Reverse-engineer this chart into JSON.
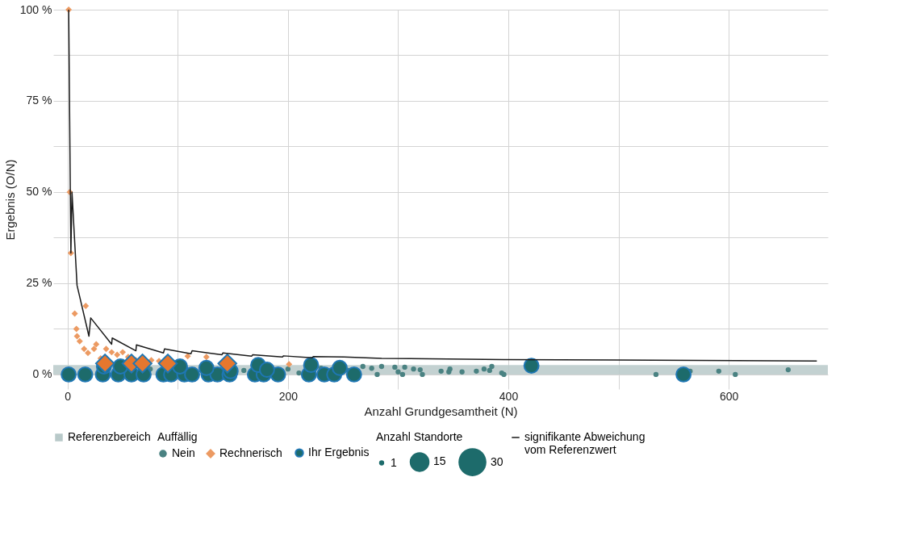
{
  "chart_data": {
    "type": "bubble",
    "xlabel": "Anzahl Grundgesamtheit (N)",
    "ylabel": "Ergebnis (O/N)",
    "legend_title": "Auffällig",
    "legend": "bottom",
    "grid": true,
    "xlim": [
      -13,
      690
    ],
    "ylim": [
      -4,
      100
    ],
    "xticks": [
      0,
      {
        "value": 100,
        "label": null
      },
      200,
      {
        "value": 300,
        "label": null
      },
      400,
      {
        "value": 500,
        "label": null
      },
      600
    ],
    "yticks": [
      {
        "value": 0,
        "label": "0 %"
      },
      {
        "value": 12.5,
        "label": null
      },
      {
        "value": 25,
        "label": "25 %"
      },
      {
        "value": 37.5,
        "label": null
      },
      {
        "value": 50,
        "label": "50 %"
      },
      {
        "value": 62.5,
        "label": null
      },
      {
        "value": 75,
        "label": "75 %"
      },
      {
        "value": 87.5,
        "label": null
      },
      {
        "value": 100,
        "label": "100 %"
      }
    ],
    "size_legend": [
      1,
      15,
      30
    ],
    "annotations": [
      "Anzahl Standorte"
    ],
    "bands": [
      {
        "axis": "y",
        "from": 0,
        "to": 2.6,
        "label": "Referenzbereich",
        "color": "#b8c9c9"
      }
    ],
    "series": [
      {
        "type": "line",
        "name": "signifikante Abweichung\nvom Referenzwert",
        "color": "#1a1a1a",
        "x": [
          1,
          3,
          4,
          8.6,
          19.4,
          21,
          40,
          40.5,
          62,
          62.5,
          87,
          88,
          112,
          113,
          140,
          141,
          167,
          168,
          195,
          196,
          222,
          223,
          251,
          285,
          395,
          680
        ],
        "values": [
          100,
          33.3,
          50,
          24.4,
          10.5,
          15.5,
          8.3,
          10,
          6.5,
          8.1,
          5.9,
          7,
          5.7,
          6.5,
          5.4,
          5.9,
          5,
          5.4,
          4.8,
          5.1,
          4.6,
          4.9,
          4.8,
          4.4,
          4.1,
          3.7
        ]
      },
      {
        "name": "Nein",
        "color": "#4a8282",
        "marker": "circle",
        "x": [
          75,
          160,
          200,
          210,
          230,
          255,
          268,
          276,
          285,
          281,
          297,
          306,
          300,
          304,
          314,
          320,
          322,
          339,
          347,
          346,
          358,
          371,
          378,
          385,
          383,
          394,
          396,
          534,
          565,
          591,
          606,
          654
        ],
        "values": [
          1.5,
          1.1,
          1.5,
          0.4,
          1.7,
          1.1,
          2.2,
          1.7,
          2.2,
          0,
          2,
          2,
          0.7,
          0,
          1.5,
          1.3,
          0,
          0.9,
          1.5,
          0.7,
          0.7,
          0.9,
          1.5,
          2.2,
          1.1,
          0.4,
          0,
          0,
          0.9,
          0.9,
          0,
          1.3
        ],
        "sizes": [
          1,
          1,
          1,
          1,
          1,
          1,
          1,
          1,
          1,
          1,
          1,
          1,
          1,
          1,
          1,
          1,
          1,
          1,
          1,
          1,
          1,
          1,
          1,
          1,
          1,
          1,
          1,
          1,
          1,
          1,
          1,
          1
        ]
      },
      {
        "name": "Rechnerisch",
        "color": "#ec9a62",
        "marker": "diamond",
        "x": [
          1,
          2,
          3,
          6.5,
          16.5,
          8,
          8.6,
          11,
          15,
          18.5,
          26,
          24,
          30,
          35,
          40,
          45,
          50,
          55,
          62,
          76,
          83,
          109,
          126,
          201
        ],
        "values": [
          100,
          50,
          33.3,
          16.7,
          18.8,
          12.5,
          10.5,
          9.1,
          7,
          5.9,
          8.3,
          7,
          4.4,
          7,
          6.1,
          5.4,
          6.1,
          4.8,
          3.9,
          3.9,
          3.7,
          5,
          4.8,
          2.8
        ],
        "sizes": [
          1,
          1,
          1,
          1,
          1,
          1,
          1,
          1,
          1,
          1,
          1,
          1,
          1,
          1,
          1,
          1,
          1,
          1,
          1,
          1,
          1,
          1,
          1,
          1
        ]
      },
      {
        "name": "Ihr Ergebnis",
        "color": "#1d6b6b",
        "marker": "circle",
        "x": [
          1,
          16,
          32,
          46,
          58,
          69,
          87,
          94,
          106,
          113,
          128,
          136,
          147,
          170,
          178,
          191,
          219,
          233,
          242,
          260,
          33,
          48,
          102,
          126,
          148,
          173,
          181,
          221,
          247,
          421,
          559
        ],
        "values": [
          0,
          0,
          0,
          0,
          0,
          0,
          0,
          0,
          0,
          0,
          0,
          0,
          0,
          0,
          0,
          0,
          0,
          0,
          0,
          0,
          2.2,
          2.2,
          2.2,
          1.8,
          0.9,
          2.6,
          1.3,
          2.6,
          1.8,
          2.4,
          0
        ],
        "sizes": [
          8,
          8,
          8,
          8,
          8,
          8,
          8,
          8,
          8,
          8,
          8,
          8,
          8,
          8,
          8,
          8,
          8,
          8,
          8,
          8,
          8,
          8,
          8,
          8,
          8,
          8,
          8,
          8,
          8,
          8,
          8
        ]
      },
      {
        "color": "#e6772e",
        "marker": "diamond",
        "x": [
          34,
          58,
          68,
          91,
          145
        ],
        "values": [
          3,
          3,
          3,
          3,
          3
        ],
        "sizes": [
          8,
          8,
          8,
          8,
          8
        ]
      }
    ]
  }
}
